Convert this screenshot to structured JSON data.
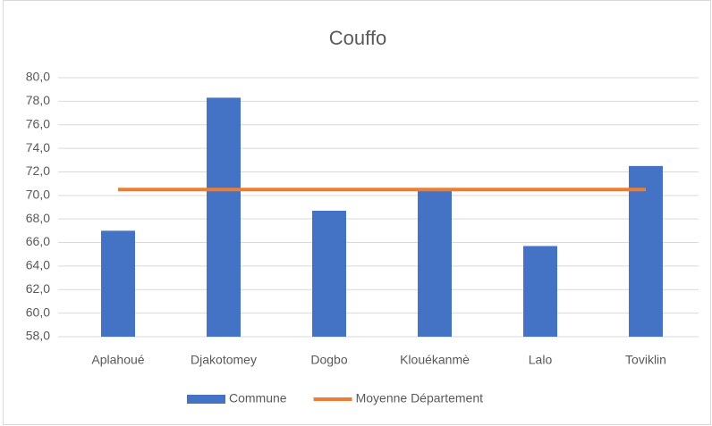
{
  "chart_data": {
    "type": "bar",
    "title": "Couffo",
    "categories": [
      "Aplahoué",
      "Djakotomey",
      "Dogbo",
      "Klouékanmè",
      "Lalo",
      "Toviklin"
    ],
    "series": [
      {
        "name": "Commune",
        "type": "bar",
        "color": "#4472c4",
        "values": [
          67.0,
          78.3,
          68.7,
          70.4,
          65.7,
          72.5
        ]
      },
      {
        "name": "Moyenne Département",
        "type": "line",
        "color": "#ed7d31",
        "values": [
          70.5,
          70.5,
          70.5,
          70.5,
          70.5,
          70.5
        ]
      }
    ],
    "ylim": [
      58,
      80
    ],
    "yticks": [
      {
        "value": 58,
        "label": "58,0"
      },
      {
        "value": 60,
        "label": "60,0"
      },
      {
        "value": 62,
        "label": "62,0"
      },
      {
        "value": 64,
        "label": "64,0"
      },
      {
        "value": 66,
        "label": "66,0"
      },
      {
        "value": 68,
        "label": "68,0"
      },
      {
        "value": 70,
        "label": "70,0"
      },
      {
        "value": 72,
        "label": "72,0"
      },
      {
        "value": 74,
        "label": "74,0"
      },
      {
        "value": 76,
        "label": "76,0"
      },
      {
        "value": 78,
        "label": "78,0"
      },
      {
        "value": 80,
        "label": "80,0"
      }
    ],
    "grid": true,
    "legend": "bottom"
  }
}
